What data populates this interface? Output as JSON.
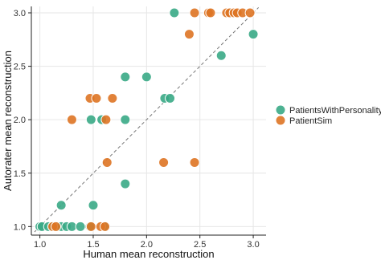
{
  "chart_data": {
    "type": "scatter",
    "title": "",
    "xlabel": "Human mean reconstruction",
    "ylabel": "Autorater mean reconstruction",
    "xlim": [
      0.92,
      3.12
    ],
    "ylim": [
      0.92,
      3.06
    ],
    "x_ticks": [
      "1.0",
      "1.5",
      "2.0",
      "2.5",
      "3.0"
    ],
    "y_ticks": [
      "1.0",
      "1.5",
      "2.0",
      "2.5",
      "3.0"
    ],
    "grid": true,
    "legend_position": "right",
    "reference_line": {
      "style": "dashed",
      "from": [
        0.95,
        0.95
      ],
      "to": [
        3.05,
        3.05
      ]
    },
    "series": [
      {
        "name": "PatientsWithPersonality",
        "color": "#3aaa86",
        "points": [
          [
            1.0,
            1.0
          ],
          [
            1.02,
            1.0
          ],
          [
            1.08,
            1.0
          ],
          [
            1.12,
            1.0
          ],
          [
            1.15,
            1.0
          ],
          [
            1.2,
            1.0
          ],
          [
            1.25,
            1.0
          ],
          [
            1.3,
            1.0
          ],
          [
            1.38,
            1.0
          ],
          [
            1.47,
            1.0
          ],
          [
            1.6,
            1.0
          ],
          [
            1.2,
            1.2
          ],
          [
            1.5,
            1.2
          ],
          [
            1.8,
            1.4
          ],
          [
            1.48,
            2.0
          ],
          [
            1.58,
            2.0
          ],
          [
            1.8,
            2.0
          ],
          [
            1.8,
            2.4
          ],
          [
            2.0,
            2.4
          ],
          [
            2.17,
            2.2
          ],
          [
            2.22,
            2.2
          ],
          [
            2.26,
            3.0
          ],
          [
            2.7,
            2.6
          ],
          [
            2.78,
            3.0
          ],
          [
            3.0,
            2.8
          ]
        ]
      },
      {
        "name": "PatientSim",
        "color": "#de7423",
        "points": [
          [
            1.12,
            1.0
          ],
          [
            1.15,
            1.0
          ],
          [
            1.48,
            1.0
          ],
          [
            1.57,
            1.0
          ],
          [
            1.61,
            1.0
          ],
          [
            1.3,
            2.0
          ],
          [
            1.47,
            2.2
          ],
          [
            1.53,
            2.2
          ],
          [
            1.62,
            2.0
          ],
          [
            1.68,
            2.2
          ],
          [
            1.63,
            1.6
          ],
          [
            2.16,
            1.6
          ],
          [
            2.45,
            1.6
          ],
          [
            2.4,
            2.8
          ],
          [
            2.45,
            3.0
          ],
          [
            2.58,
            3.0
          ],
          [
            2.6,
            3.0
          ],
          [
            2.75,
            3.0
          ],
          [
            2.78,
            3.0
          ],
          [
            2.82,
            3.0
          ],
          [
            2.85,
            3.0
          ],
          [
            2.9,
            3.0
          ],
          [
            2.97,
            3.0
          ]
        ]
      }
    ]
  }
}
